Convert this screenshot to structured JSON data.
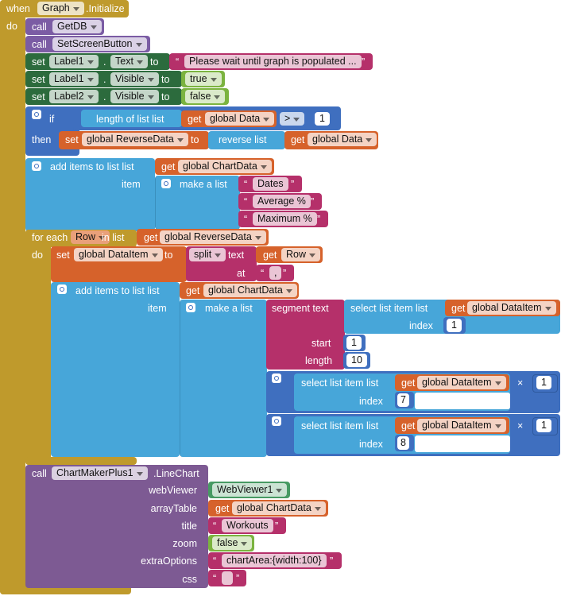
{
  "quote_open": "“",
  "quote_close": "”",
  "event": {
    "when": "when",
    "component": "Graph",
    "event": ".Initialize",
    "do": "do"
  },
  "call_getdb": {
    "keyword": "call",
    "name": "GetDB"
  },
  "call_setscreen": {
    "keyword": "call",
    "name": "SetScreenButton"
  },
  "set_label1_text": {
    "keyword": "set",
    "component": "Label1",
    "dot": ".",
    "property": "Text",
    "to": "to",
    "value": "Please wait until graph is populated ..."
  },
  "set_label1_visible": {
    "keyword": "set",
    "component": "Label1",
    "dot": ".",
    "property": "Visible",
    "to": "to",
    "value": "true"
  },
  "set_label2_visible": {
    "keyword": "set",
    "component": "Label2",
    "dot": ".",
    "property": "Visible",
    "to": "to",
    "value": "false"
  },
  "if_block": {
    "if": "if",
    "length": "length of list list",
    "get": "get",
    "variable": "global Data",
    "operator": ">",
    "number": 1,
    "then": "then",
    "set": "set",
    "set_variable": "global ReverseData",
    "to": "to",
    "reverse": "reverse list",
    "get2": "get",
    "variable2": "global Data"
  },
  "add_headers": {
    "label": "add items to list list",
    "get": "get",
    "list": "global ChartData",
    "item": "item",
    "make_list": "make a list",
    "items": [
      "Dates",
      "Average %",
      "Maximum %"
    ]
  },
  "for_each": {
    "label": "for each",
    "variable": "Row",
    "in_list": "in list",
    "get": "get",
    "list": "global ReverseData",
    "do": "do"
  },
  "set_item": {
    "set": "set",
    "variable": "global DataItem",
    "to": "to",
    "split": "split",
    "text": "text",
    "get": "get",
    "row": "Row",
    "at": "at",
    "separator": ","
  },
  "add_row": {
    "label": "add items to list list",
    "get": "get",
    "list": "global ChartData",
    "item": "item",
    "make_list": "make a list",
    "segment": {
      "label": "segment text",
      "select": "select list item list",
      "get": "get",
      "list": "global DataItem",
      "index_label": "index",
      "index": 1,
      "start_label": "start",
      "start": 1,
      "length_label": "length",
      "length": 10
    },
    "products": [
      {
        "select": "select list item list",
        "get": "get",
        "list": "global DataItem",
        "index_label": "index",
        "index": 7,
        "operator": "×",
        "factor": 1
      },
      {
        "select": "select list item list",
        "get": "get",
        "list": "global DataItem",
        "index_label": "index",
        "index": 8,
        "operator": "×",
        "factor": 1
      }
    ]
  },
  "line_chart": {
    "call": "call",
    "component": "ChartMakerPlus1",
    "method": ".LineChart",
    "args": [
      {
        "name": "webViewer",
        "value": "WebViewer1"
      },
      {
        "name": "arrayTable",
        "get": "get",
        "value": "global ChartData"
      },
      {
        "name": "title",
        "value": "Workouts"
      },
      {
        "name": "zoom",
        "value": "false"
      },
      {
        "name": "extraOptions",
        "value": "chartArea:{width:100}"
      },
      {
        "name": "css"
      }
    ]
  }
}
